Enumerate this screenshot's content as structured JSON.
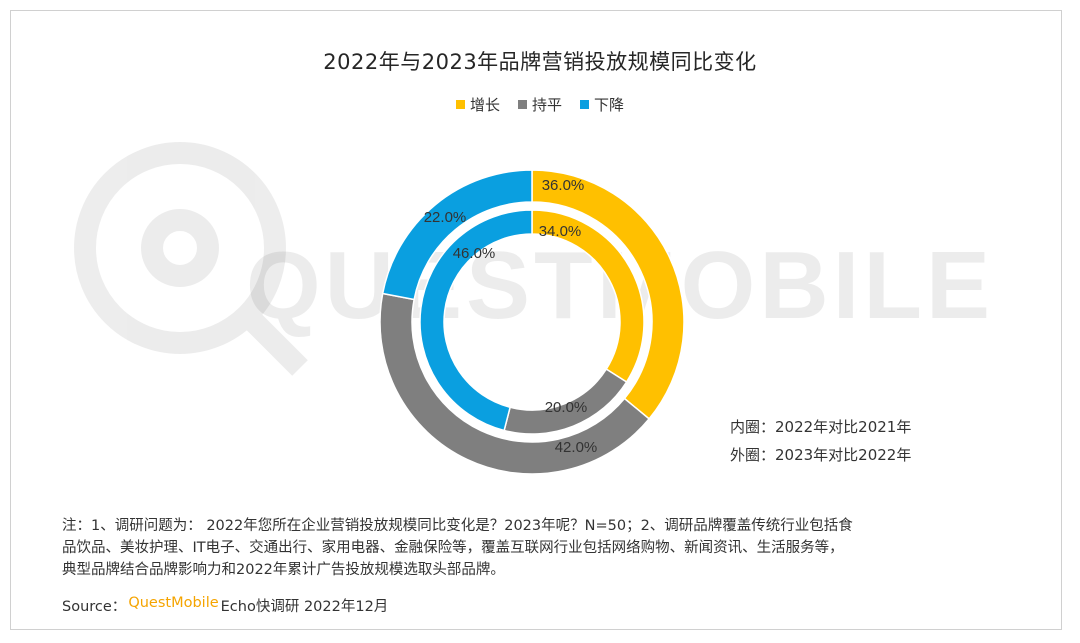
{
  "title": "2022年与2023年品牌营销投放规模同比变化",
  "legend": [
    {
      "label": "增长",
      "color": "#FFC000"
    },
    {
      "label": "持平",
      "color": "#7F7F7F"
    },
    {
      "label": "下降",
      "color": "#0A9FE0"
    }
  ],
  "chart_data": {
    "type": "donut",
    "title": "2022年与2023年品牌营销投放规模同比变化",
    "categories": [
      "增长",
      "持平",
      "下降"
    ],
    "colors": [
      "#FFC000",
      "#7F7F7F",
      "#0A9FE0"
    ],
    "series": [
      {
        "ring": "inner",
        "values": [
          34.0,
          20.0,
          46.0
        ],
        "labels": [
          "34.0%",
          "20.0%",
          "46.0%"
        ]
      },
      {
        "ring": "outer",
        "values": [
          36.0,
          42.0,
          22.0
        ],
        "labels": [
          "36.0%",
          "42.0%",
          "22.0%"
        ]
      }
    ],
    "legend_position": "top-center"
  },
  "ring_notes": {
    "inner": "内圈：2022年对比2021年",
    "outer": "外圈：2023年对比2022年"
  },
  "note_lines": [
    "注：1、调研问题为：  2022年您所在企业营销投放规模同比变化是？2023年呢？N=50；2、调研品牌覆盖传统行业包括食",
    "品饮品、美妆护理、IT电子、交通出行、家用电器、金融保险等，覆盖互联网行业包括网络购物、新闻资讯、生活服务等，",
    "典型品牌结合品牌影响力和2022年累计广告投放规模选取头部品牌。"
  ],
  "source": {
    "prefix": "Source：",
    "brand": "QuestMobile",
    "suffix": "Echo快调研 2022年12月"
  },
  "watermark_text": "QUESTMOBILE"
}
